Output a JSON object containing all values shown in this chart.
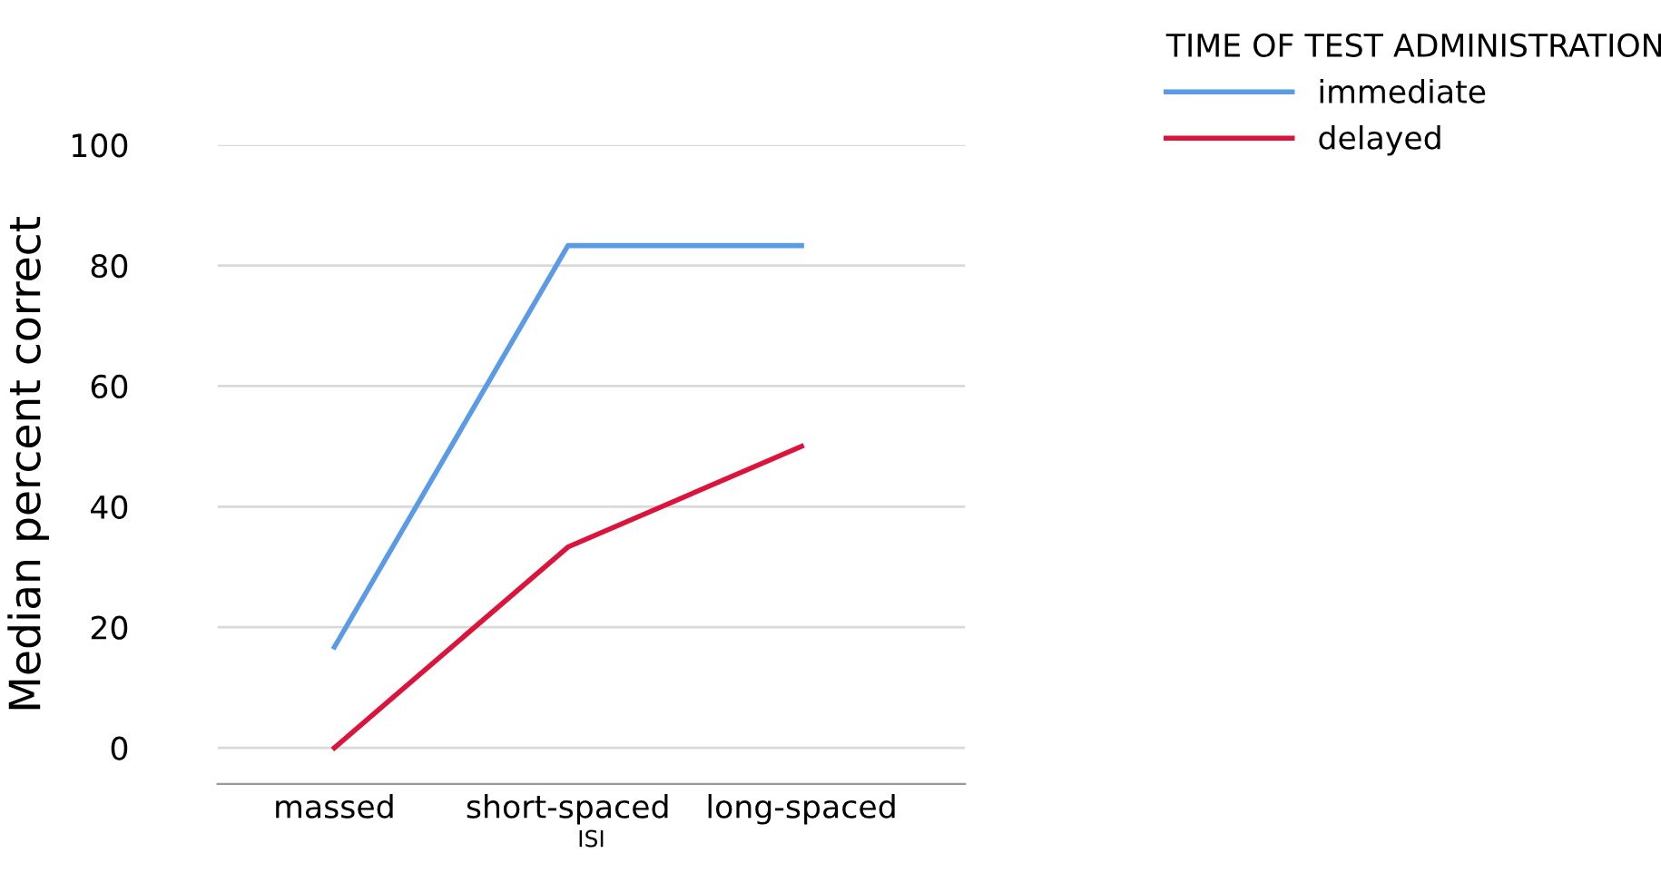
{
  "chart_data": {
    "type": "line",
    "xlabel": "ISI",
    "ylabel": "Median percent correct",
    "legend_title": "TIME OF TEST ADMINISTRATION",
    "categories": [
      "massed",
      "short-spaced",
      "long-spaced"
    ],
    "series": [
      {
        "name": "immediate",
        "color": "#5b9be6",
        "values": [
          16.7,
          83.3,
          83.3
        ]
      },
      {
        "name": "delayed",
        "color": "#dc143c",
        "values": [
          0,
          33.3,
          50
        ]
      }
    ],
    "ylim": [
      -6,
      100
    ],
    "yticks": [
      0,
      20,
      40,
      60,
      80,
      100
    ],
    "grid": "y",
    "legend": "top right",
    "marker": "none",
    "line_style": "solid"
  }
}
